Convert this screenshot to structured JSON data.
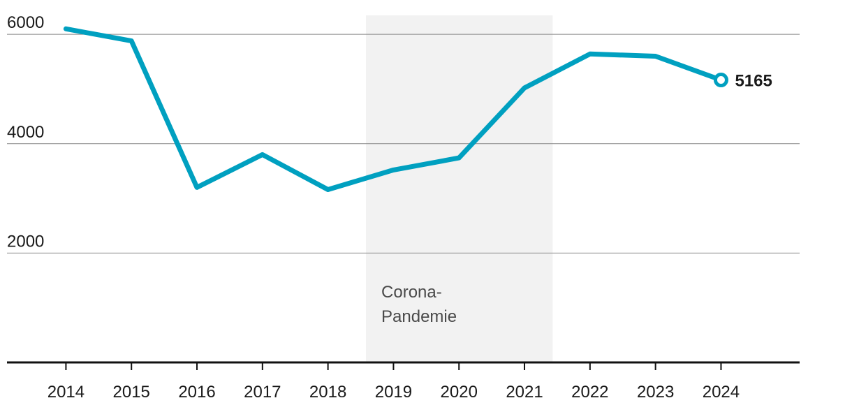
{
  "chart_data": {
    "type": "line",
    "x": [
      2014,
      2015,
      2016,
      2017,
      2018,
      2019,
      2020,
      2021,
      2022,
      2023,
      2024
    ],
    "series": [
      {
        "values": [
          6100,
          5880,
          3200,
          3800,
          3160,
          3520,
          3740,
          5020,
          5640,
          5600,
          5165
        ]
      }
    ],
    "xlim": [
      2013.1,
      2025.2
    ],
    "ylim": [
      0,
      6500
    ],
    "y_ticks": [
      2000,
      4000,
      6000
    ],
    "y_tick_labels": [
      "2000",
      "4000",
      "6000"
    ],
    "grid": true,
    "shaded_region": {
      "from": 2018.58,
      "to": 2021.43,
      "label_lines": [
        "Corona-",
        "Pandemie"
      ]
    },
    "end_label": "5165",
    "colors": {
      "line": "#00a0c0",
      "grid": "#888888",
      "axis": "#111111",
      "shade": "#f2f2f2"
    }
  }
}
